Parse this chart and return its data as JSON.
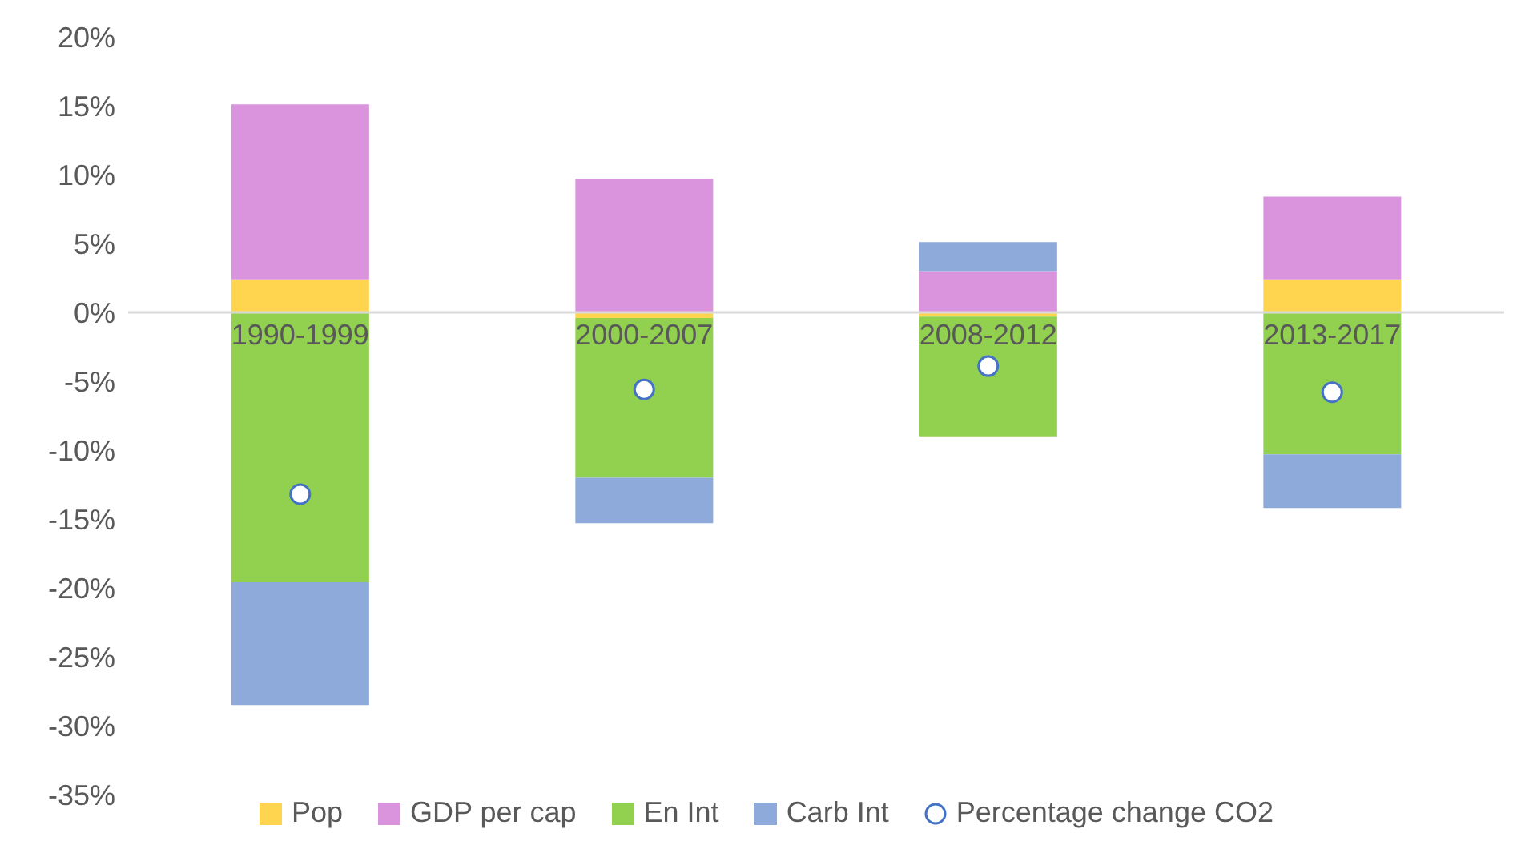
{
  "chart_data": {
    "type": "bar",
    "stacked": true,
    "categories": [
      "1990-1999",
      "2000-2007",
      "2008-2012",
      "2013-2017"
    ],
    "series": [
      {
        "name": "Pop",
        "color": "#ffd44f",
        "values": [
          2.4,
          -0.4,
          -0.3,
          2.4
        ]
      },
      {
        "name": "GDP per cap",
        "color": "#d994dd",
        "values": [
          12.7,
          9.7,
          3.0,
          6.0
        ]
      },
      {
        "name": "En Int",
        "color": "#92d050",
        "values": [
          -19.6,
          -11.6,
          -8.7,
          -10.3
        ]
      },
      {
        "name": "Carb Int",
        "color": "#8eaadb",
        "values": [
          -8.9,
          -3.3,
          2.1,
          -3.9
        ]
      },
      {
        "name": "Percentage change CO2",
        "type": "scatter",
        "color": "#4472c4",
        "marker": "circle",
        "values": [
          -13.2,
          -5.6,
          -3.9,
          -5.8
        ]
      }
    ],
    "ylim": [
      -35,
      20
    ],
    "yticks": [
      {
        "value": 20,
        "label": "20%"
      },
      {
        "value": 15,
        "label": "15%"
      },
      {
        "value": 10,
        "label": "10%"
      },
      {
        "value": 5,
        "label": "5%"
      },
      {
        "value": 0,
        "label": "0%"
      },
      {
        "value": -5,
        "label": "-5%"
      },
      {
        "value": -10,
        "label": "-10%"
      },
      {
        "value": -15,
        "label": "-15%"
      },
      {
        "value": -20,
        "label": "-20%"
      },
      {
        "value": -25,
        "label": "-25%"
      },
      {
        "value": -30,
        "label": "-30%"
      },
      {
        "value": -35,
        "label": "-35%"
      }
    ],
    "grid": false,
    "legend": "bottom"
  }
}
